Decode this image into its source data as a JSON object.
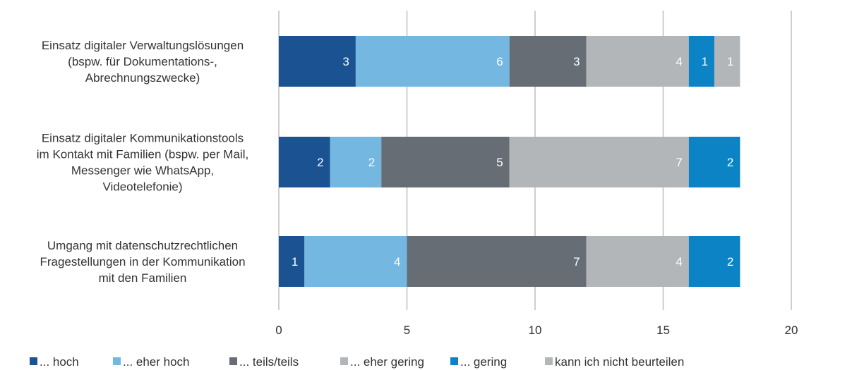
{
  "chart_data": {
    "type": "bar",
    "orientation": "horizontal",
    "stacked": true,
    "categories": [
      [
        "Einsatz digitaler Verwaltungslösungen",
        "(bspw. für Dokumentations-,",
        "Abrechnungszwecke)"
      ],
      [
        "Einsatz digitaler Kommunikationstools",
        "im Kontakt mit Familien (bspw. per Mail,",
        "Messenger wie WhatsApp,",
        "Videotelefonie)"
      ],
      [
        "Umgang mit datenschutzrechtlichen",
        "Fragestellungen in der Kommunikation",
        "mit den Familien"
      ]
    ],
    "series": [
      {
        "name": "... hoch",
        "color": "#1a5292",
        "values": [
          3,
          2,
          1
        ]
      },
      {
        "name": "... eher hoch",
        "color": "#74b7e1",
        "values": [
          6,
          2,
          4
        ]
      },
      {
        "name": "... teils/teils",
        "color": "#666d75",
        "values": [
          3,
          5,
          7
        ]
      },
      {
        "name": "... eher gering",
        "color": "#b3b6b9",
        "values": [
          4,
          7,
          4
        ]
      },
      {
        "name": "... gering",
        "color": "#0c83c5",
        "values": [
          1,
          2,
          2
        ]
      },
      {
        "name": "kann ich nicht beurteilen",
        "color": "#b3b6b9",
        "values": [
          1,
          0,
          0
        ]
      }
    ],
    "xlim": [
      0,
      20
    ],
    "xticks": [
      0,
      5,
      10,
      15,
      20
    ],
    "grid": true,
    "legend_position": "bottom",
    "title": "",
    "xlabel": "",
    "ylabel": ""
  }
}
